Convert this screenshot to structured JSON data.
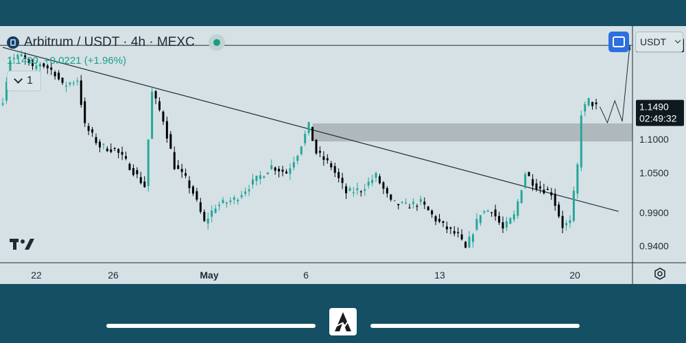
{
  "header": {
    "title": "Arbitrum / USDT · 4h · MEXC",
    "price": "1.1490",
    "change": "+0.0221 (+1.96%)",
    "collapse_count": "1"
  },
  "toolbar": {
    "currency": "USDT"
  },
  "colors": {
    "up": "#26a69a",
    "down": "#000000",
    "background": "#d5e1e5",
    "zone": "#a8b2b6",
    "accent": "#2d6fe0"
  },
  "icons": [
    "coin-icon",
    "status-dot-icon",
    "chevron-down-icon",
    "fullscreen-icon",
    "tradingview-logo-icon",
    "gear-icon",
    "brand-logo-icon"
  ],
  "chart_data": {
    "type": "candlestick",
    "title": "Arbitrum / USDT · 4h · MEXC",
    "x_tick_labels": [
      "22",
      "26",
      "May",
      "6",
      "13",
      "20"
    ],
    "y_tick_labels": [
      "1.1000",
      "1.0500",
      "0.9900",
      "0.9400"
    ],
    "ylim": [
      0.915,
      1.27
    ],
    "price_labels": [
      {
        "label": "1.2411",
        "value": 1.2411
      },
      {
        "label": "1.1490",
        "value": 1.149
      },
      {
        "label": "02:49:32",
        "value": 1.132
      }
    ],
    "last_price": 1.149,
    "countdown": "02:49:32",
    "horizontal_line": 1.2411,
    "resistance_zone": [
      1.097,
      1.124
    ],
    "trendline": [
      [
        0,
        1.238
      ],
      [
        165,
        0.992
      ]
    ],
    "projection_path": [
      [
        160,
        1.149
      ],
      [
        162,
        1.125
      ],
      [
        164,
        1.158
      ],
      [
        166,
        1.127
      ],
      [
        168,
        1.241
      ]
    ],
    "anchors": [
      [
        0,
        1.16
      ],
      [
        2,
        1.22
      ],
      [
        5,
        1.225
      ],
      [
        8,
        1.205
      ],
      [
        10,
        1.215
      ],
      [
        14,
        1.2
      ],
      [
        16,
        1.18
      ],
      [
        20,
        1.19
      ],
      [
        22,
        1.12
      ],
      [
        26,
        1.09
      ],
      [
        30,
        1.085
      ],
      [
        34,
        1.06
      ],
      [
        38,
        1.03
      ],
      [
        40,
        1.17
      ],
      [
        43,
        1.13
      ],
      [
        46,
        1.06
      ],
      [
        49,
        1.04
      ],
      [
        51,
        1.02
      ],
      [
        54,
        0.975
      ],
      [
        57,
        1.0
      ],
      [
        62,
        1.01
      ],
      [
        68,
        1.04
      ],
      [
        72,
        1.06
      ],
      [
        76,
        1.05
      ],
      [
        79,
        1.08
      ],
      [
        82,
        1.12
      ],
      [
        84,
        1.08
      ],
      [
        88,
        1.06
      ],
      [
        92,
        1.02
      ],
      [
        96,
        1.025
      ],
      [
        100,
        1.045
      ],
      [
        104,
        1.005
      ],
      [
        108,
        1.0
      ],
      [
        112,
        1.005
      ],
      [
        116,
        0.98
      ],
      [
        118,
        0.97
      ],
      [
        122,
        0.955
      ],
      [
        124,
        0.935
      ],
      [
        128,
        0.99
      ],
      [
        131,
        0.995
      ],
      [
        134,
        0.965
      ],
      [
        137,
        0.985
      ],
      [
        140,
        1.05
      ],
      [
        143,
        1.03
      ],
      [
        147,
        1.02
      ],
      [
        150,
        0.97
      ],
      [
        152,
        0.975
      ],
      [
        154,
        1.06
      ],
      [
        155,
        1.14
      ],
      [
        157,
        1.158
      ],
      [
        159,
        1.149
      ]
    ]
  }
}
